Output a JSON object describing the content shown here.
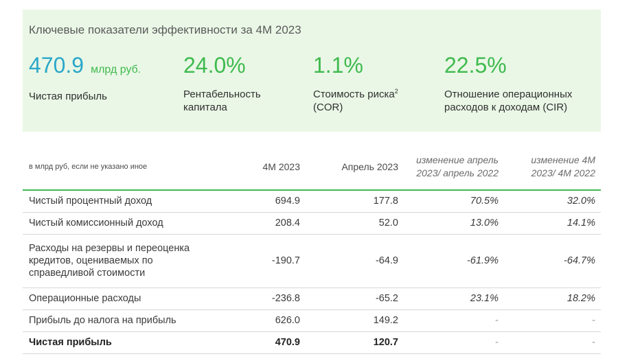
{
  "panel": {
    "title": "Ключевые показатели эффективности за 4М 2023",
    "kpis": [
      {
        "value": "470.9",
        "unit": "млрд руб.",
        "label": "Чистая прибыль"
      },
      {
        "value": "24.0%",
        "label": "Рентабельность капитала"
      },
      {
        "value": "1.1%",
        "label": "Стоимость риска",
        "label_sup": "2",
        "label_line2": "(COR)"
      },
      {
        "value": "22.5%",
        "label": "Отношение операционных расходов к доходам (CIR)"
      }
    ]
  },
  "table": {
    "headers": {
      "label": "в млрд руб, если не указано иное",
      "col1": "4М 2023",
      "col2": "Апрель 2023",
      "col3": "изменение апрель 2023/ апрель 2022",
      "col4": "изменение 4М 2023/ 4М 2022"
    },
    "rows": [
      {
        "label": "Чистый процентный доход",
        "c1": "694.9",
        "c2": "177.8",
        "c3": "70.5%",
        "c4": "32.0%"
      },
      {
        "label": "Чистый комиссионный доход",
        "c1": "208.4",
        "c2": "52.0",
        "c3": "13.0%",
        "c4": "14.1%"
      },
      {
        "label": "Расходы на резервы и переоценка кредитов, оцениваемых по справедливой стоимости",
        "c1": "-190.7",
        "c2": "-64.9",
        "c3": "-61.9%",
        "c4": "-64.7%"
      },
      {
        "label": "Операционные расходы",
        "c1": "-236.8",
        "c2": "-65.2",
        "c3": "23.1%",
        "c4": "18.2%"
      },
      {
        "label": "Прибыль до налога на прибыль",
        "c1": "626.0",
        "c2": "149.2",
        "c3": "-",
        "c4": "-"
      },
      {
        "label": "Чистая прибыль",
        "c1": "470.9",
        "c2": "120.7",
        "c3": "-",
        "c4": "-"
      }
    ]
  },
  "colors": {
    "accent_green": "#3fba4f",
    "accent_blue": "#2aa7c9",
    "panel_bg": "#eaf7e6"
  }
}
